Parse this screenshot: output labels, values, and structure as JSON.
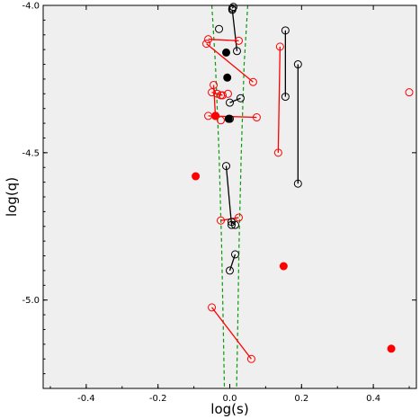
{
  "chart_data": {
    "type": "scatter",
    "xlabel": "log(s)",
    "ylabel": "log(q)",
    "xlim": [
      -0.52,
      0.52
    ],
    "ylim": [
      -5.3,
      -4.0
    ],
    "xticks": [
      -0.4,
      -0.2,
      0.0,
      0.2,
      0.4
    ],
    "xtick_labels": [
      "-0.4",
      "-0.2",
      "0.0",
      "0.2",
      "0.4"
    ],
    "yticks": [
      -4.0,
      -4.5,
      -5.0
    ],
    "ytick_labels": [
      "-4.0",
      "-4.5",
      "-5.0"
    ],
    "grid": false,
    "colors": {
      "black": "#000000",
      "red": "#ff0000",
      "boundary": "#0a9a0a",
      "background": "#efefef"
    },
    "series": [
      {
        "color": "black",
        "paired_open": [
          [
            [
              0.007,
              -4.01
            ],
            [
              0.01,
              -4.005
            ]
          ],
          [
            [
              0.007,
              -4.015
            ],
            [
              0.02,
              -4.155
            ]
          ],
          [
            [
              0.155,
              -4.085
            ],
            [
              0.155,
              -4.31
            ]
          ],
          [
            [
              0.19,
              -4.2
            ],
            [
              0.19,
              -4.605
            ]
          ],
          [
            [
              0.0,
              -4.33
            ],
            [
              0.03,
              -4.315
            ]
          ],
          [
            [
              -0.01,
              -4.545
            ],
            [
              0.005,
              -4.745
            ]
          ],
          [
            [
              0.005,
              -4.735
            ],
            [
              0.015,
              -4.745
            ]
          ],
          [
            [
              0.0,
              -4.9
            ],
            [
              0.015,
              -4.845
            ]
          ]
        ],
        "single_open": [
          [
            -0.03,
            -4.08
          ],
          [
            0.0,
            -4.385
          ]
        ],
        "filled": [
          [
            -0.01,
            -4.16
          ],
          [
            -0.007,
            -4.245
          ],
          [
            -0.003,
            -4.385
          ]
        ]
      },
      {
        "color": "red",
        "paired_open": [
          [
            [
              -0.06,
              -4.115
            ],
            [
              0.025,
              -4.12
            ]
          ],
          [
            [
              -0.065,
              -4.13
            ],
            [
              0.065,
              -4.26
            ]
          ],
          [
            [
              -0.045,
              -4.27
            ],
            [
              -0.04,
              -4.375
            ]
          ],
          [
            [
              -0.035,
              -4.3
            ],
            [
              -0.025,
              -4.305
            ]
          ],
          [
            [
              -0.05,
              -4.295
            ],
            [
              -0.02,
              -4.305
            ]
          ],
          [
            [
              -0.06,
              -4.375
            ],
            [
              0.075,
              -4.38
            ]
          ],
          [
            [
              0.14,
              -4.14
            ],
            [
              0.135,
              -4.5
            ]
          ],
          [
            [
              -0.025,
              -4.73
            ],
            [
              0.025,
              -4.72
            ]
          ],
          [
            [
              -0.05,
              -5.025
            ],
            [
              0.06,
              -5.2
            ]
          ]
        ],
        "single_open": [
          [
            -0.005,
            -4.3
          ],
          [
            -0.025,
            -4.39
          ],
          [
            0.5,
            -4.295
          ]
        ],
        "filled": [
          [
            -0.04,
            -4.375
          ],
          [
            -0.095,
            -4.58
          ],
          [
            0.15,
            -4.885
          ],
          [
            0.45,
            -5.165
          ]
        ]
      }
    ],
    "boundary_curves": [
      {
        "color": "boundary",
        "style": "dashed",
        "points": [
          [
            -0.05,
            -4.0
          ],
          [
            -0.04,
            -4.2
          ],
          [
            -0.03,
            -4.5
          ],
          [
            -0.023,
            -4.8
          ],
          [
            -0.018,
            -5.1
          ],
          [
            -0.015,
            -5.3
          ]
        ]
      },
      {
        "color": "boundary",
        "style": "dashed",
        "points": [
          [
            0.05,
            -4.0
          ],
          [
            0.04,
            -4.2
          ],
          [
            0.032,
            -4.5
          ],
          [
            0.026,
            -4.8
          ],
          [
            0.022,
            -5.1
          ],
          [
            0.019,
            -5.3
          ]
        ]
      }
    ]
  }
}
